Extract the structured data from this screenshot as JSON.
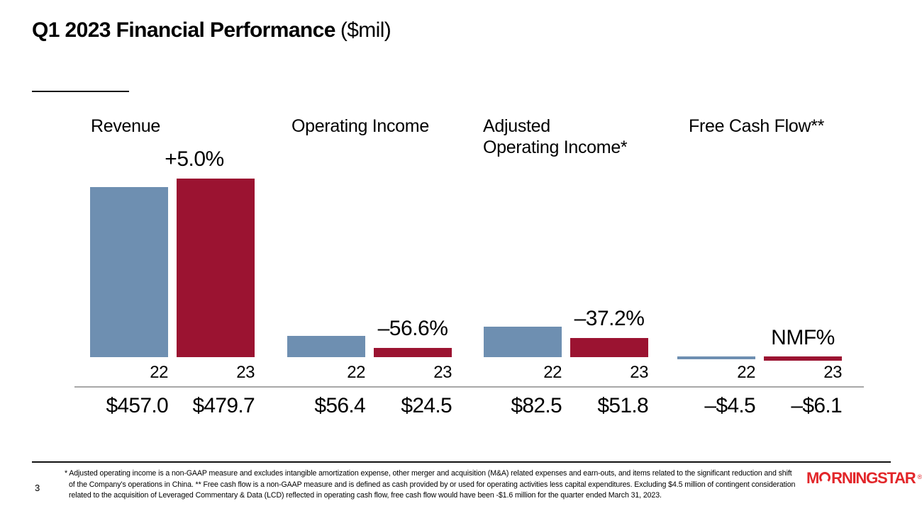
{
  "slide": {
    "title": "Q1 2023 Financial Performance",
    "title_suffix": "($mil)",
    "page_number": "3",
    "footnote_lines": [
      "* Adjusted operating income is a non-GAAP measure and excludes intangible amortization expense, other merger and acquisition (M&A) related expenses and earn-outs, and items related to the significant reduction and shift",
      "of the Company’s operations in China. ** Free cash flow is a non-GAAP measure and is defined as cash provided by or used for operating activities less capital expenditures. Excluding $4.5 million of contingent consideration",
      "related to the acquisition of Leveraged Commentary & Data (LCD) reflected in operating cash flow, free cash flow would have been -$1.6 million for the quarter ended March 31, 2023."
    ],
    "logo": {
      "brand": "Morningstar",
      "m": "M",
      "rest": "RNINGSTAR",
      "registered": "®",
      "color": "#E2262A"
    }
  },
  "chart_data": {
    "type": "bar",
    "title": "Q1 2023 Financial Performance ($mil)",
    "unit": "$mil",
    "categories": [
      "22",
      "23"
    ],
    "colors": {
      "bar_2022": "#6E8FB1",
      "bar_2023": "#9B1331"
    },
    "ylim": [
      0,
      480
    ],
    "grid": false,
    "legend": "none",
    "groups": [
      {
        "title": "Revenue",
        "title_lines": [
          "Revenue"
        ],
        "change_label": "+5.0%",
        "values": [
          457.0,
          479.7
        ],
        "value_labels": [
          "$457.0",
          "$479.7"
        ]
      },
      {
        "title": "Operating Income",
        "title_lines": [
          "Operating Income"
        ],
        "change_label": "–56.6%",
        "values": [
          56.4,
          24.5
        ],
        "value_labels": [
          "$56.4",
          "$24.5"
        ]
      },
      {
        "title": "Adjusted Operating Income*",
        "title_lines": [
          "Adjusted",
          "Operating Income*"
        ],
        "change_label": "–37.2%",
        "values": [
          82.5,
          51.8
        ],
        "value_labels": [
          "$82.5",
          "$51.8"
        ]
      },
      {
        "title": "Free Cash Flow**",
        "title_lines": [
          "Free Cash Flow**"
        ],
        "change_label": "NMF%",
        "values": [
          -4.5,
          -6.1
        ],
        "value_labels": [
          "–$4.5",
          "–$6.1"
        ]
      }
    ]
  }
}
